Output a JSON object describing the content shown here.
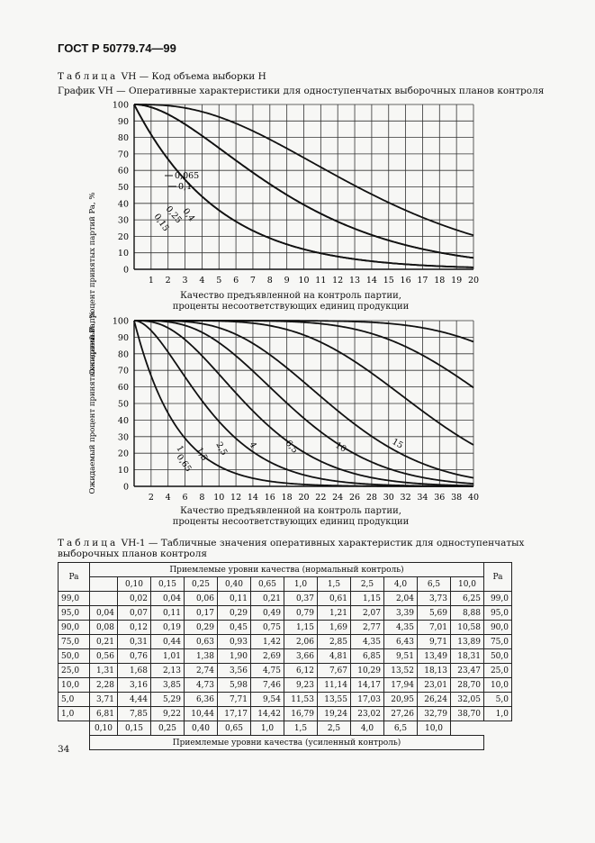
{
  "header": {
    "title": "ГОСТ Р 50779.74—99"
  },
  "table_vh_caption": {
    "prefix": "Таблица",
    "text": "VH — Код объема выборки H"
  },
  "graph_caption": "График VH — Оперативные характеристики для одноступенчатых выборочных планов контроля",
  "chart_data": [
    {
      "type": "line",
      "title": "",
      "ylabel": "Ожидаемый процент принятых партий Pa, %",
      "xlabel": "Качество предъявленной на контроль партии, проценты несоответствующих единиц продукции",
      "xlabel_line1": "Качество предъявленной на контроль партии,",
      "xlabel_line2": "проценты несоответствующих единиц продукции",
      "xlim": [
        0,
        20
      ],
      "ylim": [
        0,
        100
      ],
      "x_ticks": [
        1,
        2,
        3,
        4,
        5,
        6,
        7,
        8,
        9,
        10,
        11,
        12,
        13,
        14,
        15,
        16,
        17,
        18,
        19,
        20
      ],
      "y_ticks": [
        0,
        10,
        20,
        30,
        40,
        50,
        60,
        70,
        80,
        90,
        100
      ],
      "series": [
        {
          "name": "0,065",
          "n": 20,
          "c": 0
        },
        {
          "name": "0,1",
          "n": 20,
          "c": 0
        },
        {
          "name": "0,15",
          "n": 20,
          "c": 1
        },
        {
          "name": "0,25",
          "n": 20,
          "c": 1
        },
        {
          "name": "0,4",
          "n": 20,
          "c": 2
        }
      ]
    },
    {
      "type": "line",
      "title": "",
      "ylabel": "Ожидаемый процент принятых партий Pa, %",
      "xlabel": "Качество предъявленной на контроль партии, проценты несоответствующих единиц продукции",
      "xlabel_line1": "Качество предъявленной на контроль партии,",
      "xlabel_line2": "проценты несоответствующих единиц продукции",
      "xlim": [
        0,
        40
      ],
      "ylim": [
        0,
        100
      ],
      "x_ticks": [
        2,
        4,
        6,
        8,
        10,
        12,
        14,
        16,
        18,
        20,
        22,
        24,
        26,
        28,
        30,
        32,
        34,
        36,
        38,
        40
      ],
      "y_ticks": [
        0,
        10,
        20,
        30,
        40,
        50,
        60,
        70,
        80,
        90,
        100
      ],
      "series": [
        {
          "name": "0,65",
          "n": 20,
          "c": 0
        },
        {
          "name": "1",
          "n": 20,
          "c": 1
        },
        {
          "name": "1,5",
          "n": 20,
          "c": 2
        },
        {
          "name": "2,5",
          "n": 20,
          "c": 3
        },
        {
          "name": "4",
          "n": 20,
          "c": 4
        },
        {
          "name": "6,5",
          "n": 20,
          "c": 6
        },
        {
          "name": "10",
          "n": 20,
          "c": 8
        },
        {
          "name": "15",
          "n": 20,
          "c": 10
        }
      ]
    }
  ],
  "table_vh1": {
    "caption_prefix": "Таблица",
    "caption_text": "VH-1 — Табличные значения оперативных характеристик для одноступенчатых выборочных планов контроля",
    "pa_header": "Pa",
    "normal_header": "Приемлемые уровни качества (нормальный контроль)",
    "normal_levels": [
      "",
      "0,10",
      "0,15",
      "0,25",
      "0,40",
      "0,65",
      "1,0",
      "1,5",
      "2,5",
      "4,0",
      "6,5",
      "10,0"
    ],
    "rows": [
      {
        "pa": "99,0",
        "values": [
          "",
          "0,02",
          "0,04",
          "0,06",
          "0,11",
          "0,21",
          "0,37",
          "0,61",
          "1,15",
          "2,04",
          "3,73",
          "6,25"
        ],
        "pa_right": "99,0"
      },
      {
        "pa": "95,0",
        "values": [
          "0,04",
          "0,07",
          "0,11",
          "0,17",
          "0,29",
          "0,49",
          "0,79",
          "1,21",
          "2,07",
          "3,39",
          "5,69",
          "8,88"
        ],
        "pa_right": "95,0"
      },
      {
        "pa": "90,0",
        "values": [
          "0,08",
          "0,12",
          "0,19",
          "0,29",
          "0,45",
          "0,75",
          "1,15",
          "1,69",
          "2,77",
          "4,35",
          "7,01",
          "10,58"
        ],
        "pa_right": "90,0"
      },
      {
        "pa": "75,0",
        "values": [
          "0,21",
          "0,31",
          "0,44",
          "0,63",
          "0,93",
          "1,42",
          "2,06",
          "2,85",
          "4,35",
          "6,43",
          "9,71",
          "13,89"
        ],
        "pa_right": "75,0"
      },
      {
        "pa": "50,0",
        "values": [
          "0,56",
          "0,76",
          "1,01",
          "1,38",
          "1,90",
          "2,69",
          "3,66",
          "4,81",
          "6,85",
          "9,51",
          "13,49",
          "18,31"
        ],
        "pa_right": "50,0"
      },
      {
        "pa": "25,0",
        "values": [
          "1,31",
          "1,68",
          "2,13",
          "2,74",
          "3,56",
          "4,75",
          "6,12",
          "7,67",
          "10,29",
          "13,52",
          "18,13",
          "23,47"
        ],
        "pa_right": "25,0"
      },
      {
        "pa": "10,0",
        "values": [
          "2,28",
          "3,16",
          "3,85",
          "4,73",
          "5,98",
          "7,46",
          "9,23",
          "11,14",
          "14,17",
          "17,94",
          "23,01",
          "28,70"
        ],
        "pa_right": "10,0"
      },
      {
        "pa": "5,0",
        "values": [
          "3,71",
          "4,44",
          "5,29",
          "6,36",
          "7,71",
          "9,54",
          "11,53",
          "13,55",
          "17,03",
          "20,95",
          "26,24",
          "32,05"
        ],
        "pa_right": "5,0"
      },
      {
        "pa": "1,0",
        "values": [
          "6,81",
          "7,85",
          "9,22",
          "10,44",
          "17,17",
          "14,42",
          "16,79",
          "19,24",
          "23,02",
          "27,26",
          "32,79",
          "38,70"
        ],
        "pa_right": "1,0"
      }
    ],
    "tightened_levels": [
      "0,10",
      "0,15",
      "0,25",
      "0,40",
      "0,65",
      "1,0",
      "1,5",
      "2,5",
      "4,0",
      "6,5",
      "10,0"
    ],
    "tightened_header": "Приемлемые уровни качества (усиленный контроль)"
  },
  "page_number": "34"
}
